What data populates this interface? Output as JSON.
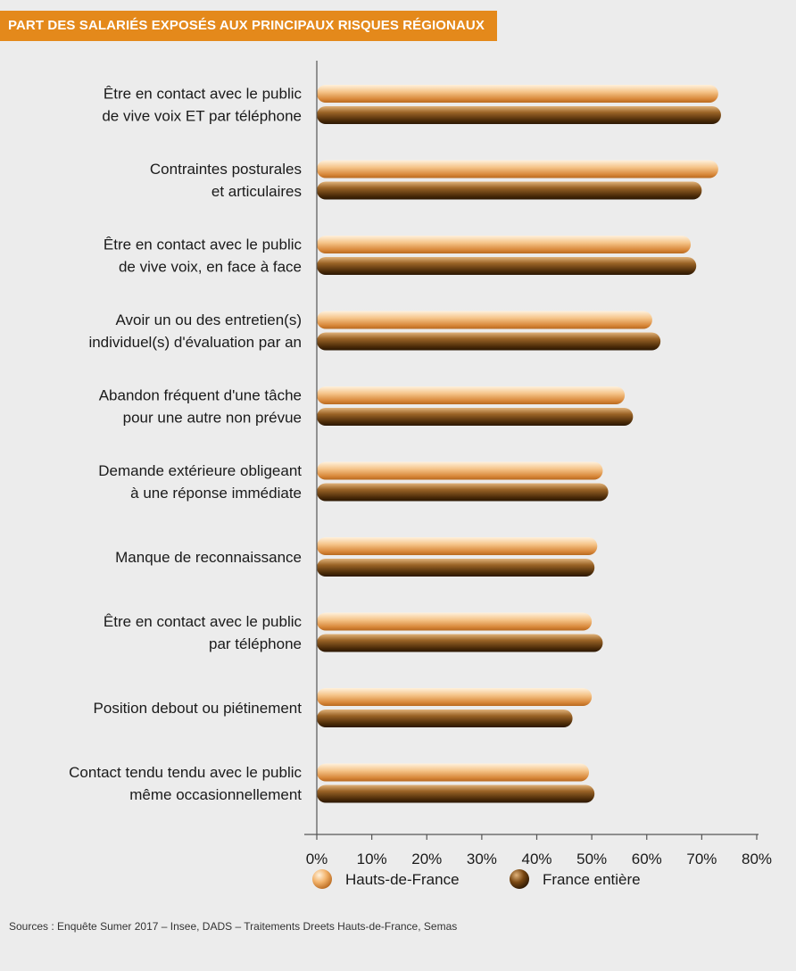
{
  "header": {
    "title": "PART DES SALARIÉS EXPOSÉS AUX PRINCIPAUX RISQUES RÉGIONAUX"
  },
  "colors": {
    "title_band": "#e4891b",
    "background": "#ececec",
    "series_hdf": "#f2b26a",
    "series_france": "#6b3f12"
  },
  "chart_data": {
    "type": "bar",
    "orientation": "horizontal",
    "title": "PART DES SALARIÉS EXPOSÉS AUX PRINCIPAUX RISQUES RÉGIONAUX",
    "xlabel": "",
    "ylabel": "",
    "xlim": [
      0,
      80
    ],
    "ticks": [
      "0%",
      "10%",
      "20%",
      "30%",
      "40%",
      "50%",
      "60%",
      "70%",
      "80%"
    ],
    "grid": false,
    "legend_position": "bottom",
    "categories": [
      [
        "Être en contact avec le public",
        "de vive voix ET par téléphone"
      ],
      [
        "Contraintes posturales",
        "et articulaires"
      ],
      [
        "Être en contact avec le public",
        "de vive voix, en face à face"
      ],
      [
        "Avoir un ou des entretien(s)",
        "individuel(s) d'évaluation par an"
      ],
      [
        "Abandon fréquent d'une tâche",
        "pour une autre non prévue"
      ],
      [
        "Demande extérieure obligeant",
        "à une réponse immédiate"
      ],
      [
        "Manque de reconnaissance"
      ],
      [
        "Être en contact avec le public",
        "par téléphone"
      ],
      [
        "Position debout ou piétinement"
      ],
      [
        "Contact tendu tendu avec le public",
        "même occasionnellement"
      ]
    ],
    "series": [
      {
        "name": "Hauts-de-France",
        "values": [
          73,
          73,
          68,
          61,
          56,
          52,
          51,
          50,
          50,
          49.5
        ]
      },
      {
        "name": "France entière",
        "values": [
          73.5,
          70,
          69,
          62.5,
          57.5,
          53,
          50.5,
          52,
          46.5,
          50.5
        ]
      }
    ]
  },
  "footer": {
    "source": "Sources : Enquête Sumer 2017 – Insee, DADS – Traitements Dreets Hauts-de-France, Semas"
  }
}
